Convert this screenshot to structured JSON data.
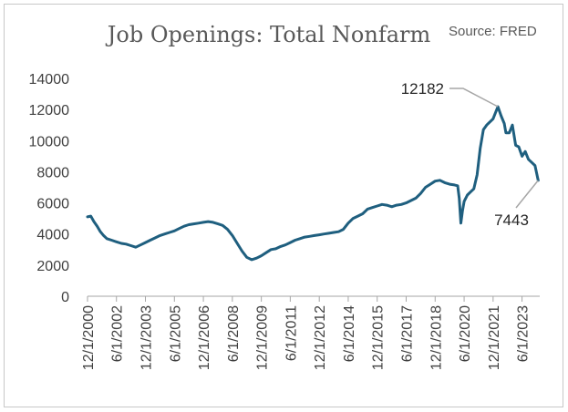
{
  "chart_data": {
    "type": "line",
    "title": "Job Openings: Total Nonfarm",
    "source": "Source: FRED",
    "xlabel": "",
    "ylabel": "",
    "ylim": [
      0,
      14000
    ],
    "yticks": [
      0,
      2000,
      4000,
      6000,
      8000,
      10000,
      12000,
      14000
    ],
    "xticks": [
      "12/1/2000",
      "6/1/2002",
      "12/1/2003",
      "6/1/2005",
      "12/1/2006",
      "6/1/2008",
      "12/1/2009",
      "6/1/2011",
      "12/1/2012",
      "6/1/2014",
      "12/1/2015",
      "6/1/2017",
      "12/1/2018",
      "6/1/2020",
      "12/1/2021",
      "6/1/2023"
    ],
    "grid": false,
    "line_color": "#1f5f7f",
    "annotations": [
      {
        "label": "12182",
        "date": "2022-03-01",
        "value": 12182
      },
      {
        "label": "7443",
        "date": "2024-04-01",
        "value": 7443
      }
    ],
    "series": [
      {
        "points": [
          [
            "2000-12-01",
            5100
          ],
          [
            "2001-02-01",
            5150
          ],
          [
            "2001-04-01",
            4800
          ],
          [
            "2001-06-01",
            4500
          ],
          [
            "2001-08-01",
            4150
          ],
          [
            "2001-10-01",
            3900
          ],
          [
            "2001-12-01",
            3700
          ],
          [
            "2002-03-01",
            3600
          ],
          [
            "2002-06-01",
            3500
          ],
          [
            "2002-09-01",
            3400
          ],
          [
            "2002-12-01",
            3350
          ],
          [
            "2003-03-01",
            3250
          ],
          [
            "2003-06-01",
            3150
          ],
          [
            "2003-09-01",
            3300
          ],
          [
            "2003-12-01",
            3450
          ],
          [
            "2004-03-01",
            3600
          ],
          [
            "2004-06-01",
            3750
          ],
          [
            "2004-09-01",
            3900
          ],
          [
            "2004-12-01",
            4000
          ],
          [
            "2005-03-01",
            4100
          ],
          [
            "2005-06-01",
            4200
          ],
          [
            "2005-09-01",
            4350
          ],
          [
            "2005-12-01",
            4500
          ],
          [
            "2006-03-01",
            4600
          ],
          [
            "2006-06-01",
            4650
          ],
          [
            "2006-09-01",
            4700
          ],
          [
            "2006-12-01",
            4750
          ],
          [
            "2007-03-01",
            4800
          ],
          [
            "2007-06-01",
            4750
          ],
          [
            "2007-09-01",
            4650
          ],
          [
            "2007-12-01",
            4550
          ],
          [
            "2008-03-01",
            4300
          ],
          [
            "2008-06-01",
            3900
          ],
          [
            "2008-09-01",
            3400
          ],
          [
            "2008-12-01",
            2900
          ],
          [
            "2009-03-01",
            2500
          ],
          [
            "2009-06-01",
            2350
          ],
          [
            "2009-09-01",
            2450
          ],
          [
            "2009-12-01",
            2600
          ],
          [
            "2010-03-01",
            2800
          ],
          [
            "2010-06-01",
            3000
          ],
          [
            "2010-09-01",
            3050
          ],
          [
            "2010-12-01",
            3200
          ],
          [
            "2011-03-01",
            3300
          ],
          [
            "2011-06-01",
            3450
          ],
          [
            "2011-09-01",
            3600
          ],
          [
            "2011-12-01",
            3700
          ],
          [
            "2012-03-01",
            3800
          ],
          [
            "2012-06-01",
            3850
          ],
          [
            "2012-09-01",
            3900
          ],
          [
            "2012-12-01",
            3950
          ],
          [
            "2013-03-01",
            4000
          ],
          [
            "2013-06-01",
            4050
          ],
          [
            "2013-09-01",
            4100
          ],
          [
            "2013-12-01",
            4150
          ],
          [
            "2014-03-01",
            4300
          ],
          [
            "2014-06-01",
            4700
          ],
          [
            "2014-09-01",
            5000
          ],
          [
            "2014-12-01",
            5150
          ],
          [
            "2015-03-01",
            5300
          ],
          [
            "2015-06-01",
            5600
          ],
          [
            "2015-09-01",
            5700
          ],
          [
            "2015-12-01",
            5800
          ],
          [
            "2016-03-01",
            5900
          ],
          [
            "2016-06-01",
            5850
          ],
          [
            "2016-09-01",
            5750
          ],
          [
            "2016-12-01",
            5850
          ],
          [
            "2017-03-01",
            5900
          ],
          [
            "2017-06-01",
            6000
          ],
          [
            "2017-09-01",
            6150
          ],
          [
            "2017-12-01",
            6300
          ],
          [
            "2018-03-01",
            6600
          ],
          [
            "2018-06-01",
            7000
          ],
          [
            "2018-09-01",
            7200
          ],
          [
            "2018-12-01",
            7400
          ],
          [
            "2019-03-01",
            7450
          ],
          [
            "2019-06-01",
            7300
          ],
          [
            "2019-09-01",
            7200
          ],
          [
            "2019-12-01",
            7150
          ],
          [
            "2020-02-01",
            7100
          ],
          [
            "2020-03-01",
            6300
          ],
          [
            "2020-04-01",
            4700
          ],
          [
            "2020-05-01",
            5500
          ],
          [
            "2020-06-01",
            6100
          ],
          [
            "2020-08-01",
            6500
          ],
          [
            "2020-10-01",
            6700
          ],
          [
            "2020-12-01",
            6900
          ],
          [
            "2021-02-01",
            7800
          ],
          [
            "2021-04-01",
            9500
          ],
          [
            "2021-06-01",
            10700
          ],
          [
            "2021-08-01",
            11000
          ],
          [
            "2021-10-01",
            11200
          ],
          [
            "2021-12-01",
            11400
          ],
          [
            "2022-03-01",
            12182
          ],
          [
            "2022-05-01",
            11600
          ],
          [
            "2022-07-01",
            11100
          ],
          [
            "2022-08-01",
            10500
          ],
          [
            "2022-10-01",
            10500
          ],
          [
            "2022-12-01",
            11000
          ],
          [
            "2023-02-01",
            9700
          ],
          [
            "2023-04-01",
            9600
          ],
          [
            "2023-06-01",
            9000
          ],
          [
            "2023-08-01",
            9300
          ],
          [
            "2023-10-01",
            8800
          ],
          [
            "2023-12-01",
            8600
          ],
          [
            "2024-02-01",
            8400
          ],
          [
            "2024-04-01",
            7443
          ]
        ]
      }
    ]
  }
}
